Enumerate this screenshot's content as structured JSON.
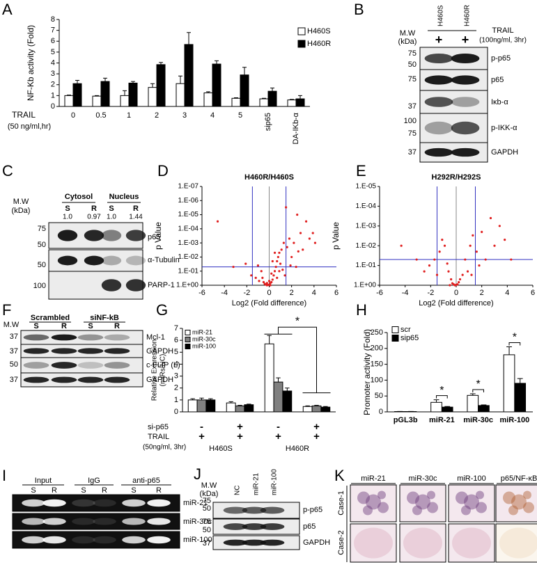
{
  "panel_labels": [
    "A",
    "B",
    "C",
    "D",
    "E",
    "F",
    "G",
    "H",
    "I",
    "J",
    "K"
  ],
  "chart_data": [
    {
      "type": "bar",
      "y_label": "NF-Kb activity (Fold)",
      "x_label": [
        "TRAIL",
        "(50 ng/ml,hr)"
      ],
      "categories": [
        "0",
        "0.5",
        "1",
        "2",
        "3",
        "4",
        "5",
        "sip65",
        "DA-IKb-α"
      ],
      "series": [
        {
          "name": "H460S",
          "color": "#ffffff",
          "values": [
            1,
            0.95,
            1.0,
            1.75,
            2.1,
            1.25,
            0.75,
            0.7,
            0.6
          ],
          "errors": [
            0.05,
            0.05,
            0.45,
            0.35,
            0.7,
            0.1,
            0.05,
            0.05,
            0.05
          ]
        },
        {
          "name": "H460R",
          "color": "#000000",
          "values": [
            2.1,
            2.3,
            2.15,
            3.85,
            5.7,
            3.9,
            2.9,
            1.4,
            0.7
          ],
          "errors": [
            0.3,
            0.3,
            0.15,
            0.2,
            1.1,
            0.3,
            0.7,
            0.3,
            0.3
          ]
        }
      ],
      "ylim": [
        0,
        8
      ],
      "yticks": [
        0,
        1,
        2,
        3,
        4,
        5,
        6,
        7,
        8
      ]
    },
    {
      "type": "scatter",
      "title": "H460R/H460S",
      "x_label": "Log2 (Fold difference)",
      "y_label": "p Value",
      "color": "#e02020",
      "ref_color": "#3030c0",
      "x": [
        -4.6,
        -3.2,
        -2.1,
        -1.6,
        -1.2,
        -0.9,
        -0.7,
        -0.5,
        -0.4,
        -0.3,
        -0.2,
        -0.1,
        0,
        0.1,
        0.2,
        0.3,
        0.4,
        0.5,
        0.6,
        0.7,
        0.8,
        0.9,
        1.0,
        1.1,
        1.2,
        1.3,
        1.4,
        1.6,
        1.8,
        2.0,
        2.2,
        2.5,
        2.8,
        3.0,
        3.3,
        3.6,
        4.1,
        -0.6,
        0.3,
        0.5,
        0.9,
        1.5,
        2.4,
        -1.0,
        0.0,
        0.2,
        0.1,
        -0.2,
        0.7,
        1.9,
        2.6,
        3.9
      ],
      "y": [
        3e-05,
        0.05,
        0.03,
        0.2,
        0.3,
        0.5,
        0.1,
        0.6,
        0.8,
        0.9,
        1,
        0.95,
        0.9,
        0.7,
        0.6,
        0.4,
        0.2,
        0.1,
        0.05,
        0.02,
        0.01,
        0.005,
        0.03,
        0.003,
        0.08,
        0.001,
        0.2,
        0.002,
        0.0005,
        0.01,
        0.001,
        1e-05,
        0.0002,
        0.003,
        3e-05,
        0.0005,
        0.001,
        0.3,
        0.02,
        0.005,
        0.1,
        3e-06,
        0.05,
        0.04,
        0.5,
        0.15,
        1,
        0.7,
        0.3,
        0.04,
        0.004,
        0.0002
      ],
      "xlim": [
        -6,
        6
      ],
      "xticks": [
        -6,
        -4,
        -2,
        0,
        2,
        4,
        6
      ],
      "ylim": [
        1,
        1e-07
      ],
      "log_y": true,
      "yticks": [
        {
          "value": 1,
          "label": "1.E+00"
        },
        {
          "value": 0.1,
          "label": "1.E-01"
        },
        {
          "value": 0.01,
          "label": "1.E-02"
        },
        {
          "value": 0.001,
          "label": "1.E-03"
        },
        {
          "value": 0.0001,
          "label": "1.E-04"
        },
        {
          "value": 1e-05,
          "label": "1.E-05"
        },
        {
          "value": 1e-06,
          "label": "1.E-06"
        },
        {
          "value": 1e-07,
          "label": "1.E-07"
        }
      ],
      "vlines": [
        -1.5,
        0,
        1.5
      ],
      "hline": 0.05
    },
    {
      "type": "scatter",
      "title": "H292R/H292S",
      "x_label": "Log2 (Fold difference)",
      "y_label": "p Value",
      "color": "#e02020",
      "ref_color": "#3030c0",
      "x": [
        -4.3,
        -3.1,
        -2.5,
        -2.1,
        -1.7,
        -1.3,
        -1.1,
        -0.9,
        -0.7,
        -0.6,
        -0.4,
        -0.3,
        -0.2,
        -0.1,
        0,
        0.1,
        0.2,
        0.3,
        0.5,
        0.7,
        0.9,
        1.1,
        1.3,
        1.6,
        1.8,
        2.0,
        2.3,
        2.7,
        3.0,
        3.4,
        3.8,
        4.3,
        -1.5,
        1.2,
        -0.5
      ],
      "y": [
        0.01,
        0.05,
        0.2,
        0.1,
        0.05,
        0.02,
        0.005,
        0.01,
        0.08,
        0.2,
        0.5,
        0.8,
        0.9,
        1,
        0.95,
        0.9,
        0.7,
        0.5,
        0.3,
        0.05,
        0.2,
        0.01,
        0.003,
        0.02,
        0.1,
        0.002,
        0.05,
        0.0004,
        0.01,
        0.001,
        0.005,
        0.05,
        0.3,
        0.3,
        1
      ],
      "xlim": [
        -6,
        6
      ],
      "xticks": [
        -6,
        -4,
        -2,
        0,
        2,
        4,
        6
      ],
      "ylim": [
        1,
        1e-05
      ],
      "log_y": true,
      "yticks": [
        {
          "value": 1,
          "label": "1.E+00"
        },
        {
          "value": 0.1,
          "label": "1.E-01"
        },
        {
          "value": 0.01,
          "label": "1.E-02"
        },
        {
          "value": 0.001,
          "label": "1.E-03"
        },
        {
          "value": 0.0001,
          "label": "1.E-04"
        },
        {
          "value": 1e-05,
          "label": "1.E-05"
        }
      ],
      "vlines": [
        -1.5,
        0,
        1.5
      ],
      "hline": 0.05
    },
    {
      "type": "bar",
      "y_label": [
        "Relative Expression",
        "(miRs/NC)"
      ],
      "categories": [
        null,
        null,
        null,
        null
      ],
      "series": [
        {
          "name": "miR-21",
          "color": "#ffffff",
          "values": [
            1.0,
            0.75,
            5.7,
            0.45
          ],
          "errors": [
            0.1,
            0.1,
            0.7,
            0.05
          ]
        },
        {
          "name": "miR-30c",
          "color": "#808080",
          "values": [
            1.0,
            0.5,
            2.5,
            0.5
          ],
          "errors": [
            0.15,
            0.05,
            0.35,
            0.05
          ]
        },
        {
          "name": "miR-100",
          "color": "#000000",
          "values": [
            1.0,
            0.6,
            1.75,
            0.4
          ],
          "errors": [
            0.1,
            0.05,
            0.25,
            0.05
          ]
        }
      ],
      "ylim": [
        0,
        7
      ],
      "yticks": [
        0,
        1,
        2,
        3,
        4,
        5,
        6,
        7
      ],
      "conditions": [
        {
          "label": "si-p65",
          "marks": [
            "-",
            "+",
            "-",
            "+"
          ]
        },
        {
          "label": "TRAIL",
          "marks": [
            "+",
            "+",
            "+",
            "+"
          ]
        }
      ],
      "condition_note": "(50ng/ml, 3hr)",
      "groups": [
        "H460S",
        "H460R"
      ],
      "annotations": [
        "*"
      ]
    },
    {
      "type": "bar",
      "y_label": "Promoter activity (Fold)",
      "categories": [
        "pGL3b",
        "miR-21",
        "miR-30c",
        "miR-100"
      ],
      "series": [
        {
          "name": "scr",
          "color": "#ffffff",
          "values": [
            1,
            30,
            52,
            180
          ],
          "errors": [
            0.5,
            8,
            5,
            25
          ]
        },
        {
          "name": "sip65",
          "color": "#000000",
          "values": [
            1,
            15,
            20,
            90
          ],
          "errors": [
            0.3,
            2,
            2,
            15
          ]
        }
      ],
      "ylim": [
        0,
        250
      ],
      "yticks": [
        0,
        50,
        100,
        150,
        200,
        250
      ],
      "annotations": [
        "*",
        "*",
        "*"
      ]
    }
  ],
  "blot_b": {
    "mw_label": [
      "M.W",
      "(kDa)"
    ],
    "lanes": [
      "H460S",
      "H460R"
    ],
    "plus": [
      "+",
      "+"
    ],
    "treatment": [
      "TRAIL",
      "(100ng/ml, 3hr)"
    ],
    "markers": [
      "75",
      "50",
      "75",
      "37",
      "100",
      "75",
      "37"
    ],
    "bands": [
      "p-p65",
      "p65",
      "Iκb-α",
      "p-IKK-α",
      "GAPDH"
    ]
  },
  "blot_c": {
    "mw_label": [
      "M.W",
      "(kDa)"
    ],
    "groups": [
      "Cytosol",
      "Nucleus"
    ],
    "lanes": [
      "S",
      "R",
      "S",
      "R"
    ],
    "ratios": [
      "1.0",
      "0.97",
      "1.0",
      "1.44"
    ],
    "markers": [
      "75",
      "50",
      "50",
      "100"
    ],
    "bands": [
      "p65",
      "α-Tubulin",
      "PARP-1"
    ]
  },
  "blot_f": {
    "mw_label": "M.W",
    "groups": [
      "Scrambled",
      "siNF-kB"
    ],
    "lanes": [
      "S",
      "R",
      "S",
      "R"
    ],
    "markers": [
      "37",
      "37",
      "50",
      "37"
    ],
    "bands": [
      "Mcl-1",
      "GAPDH",
      "c-FLIP (L)",
      "GAPDH"
    ]
  },
  "blot_i": {
    "groups": [
      "Input",
      "IgG",
      "anti-p65"
    ],
    "lanes": [
      "S",
      "R",
      "S",
      "R",
      "S",
      "R"
    ],
    "bands": [
      "miR-21",
      "miR-30c",
      "miR-100"
    ]
  },
  "blot_j": {
    "mw_label": [
      "M.W",
      "(kDa)"
    ],
    "lanes": [
      "NC",
      "miR-21",
      "miR-100"
    ],
    "markers": [
      "75",
      "50",
      "75",
      "50",
      "37"
    ],
    "bands": [
      "p-p65",
      "p65",
      "GAPDH"
    ]
  },
  "ihc_k": {
    "columns": [
      "miR-21",
      "miR-30c",
      "miR-100",
      "p65/NF-κB"
    ],
    "rows": [
      "Case-1",
      "Case-2"
    ]
  }
}
